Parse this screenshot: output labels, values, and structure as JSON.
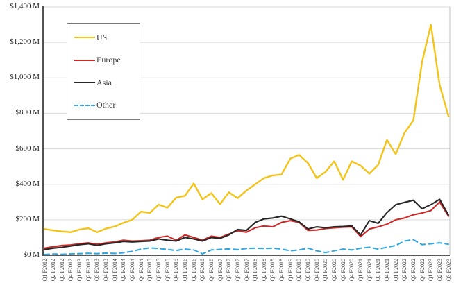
{
  "chart_data": {
    "type": "line",
    "title": "",
    "xlabel": "",
    "ylabel": "",
    "ylim": [
      0,
      1400
    ],
    "grid": true,
    "legend_position": "top-left",
    "y_ticks": [
      "$0 M",
      "$200 M",
      "$400 M",
      "$600 M",
      "$800 M",
      "$1,000 M",
      "$1,200 M",
      "$1,400 M"
    ],
    "categories": [
      "Q1 F2012",
      "Q2 F2012",
      "Q3 F2012",
      "Q4 F2012",
      "Q1 F2013",
      "Q2 F2013",
      "Q3 F2013",
      "Q4 F2013",
      "Q1 F2014",
      "Q2 F2014",
      "Q3 F2014",
      "Q4 F2014",
      "Q1 F2015",
      "Q2 F2015",
      "Q3 F2015",
      "Q4 F2015",
      "Q1 F2016",
      "Q2 F2016",
      "Q3 F2016",
      "Q4 F2016",
      "Q1 F2017",
      "Q2 F2017",
      "Q3 F2017",
      "Q4 F2017",
      "Q1 F2018",
      "Q2 F2018",
      "Q3 F2018",
      "Q4 F2018",
      "Q1 F2019",
      "Q2 F2019",
      "Q3 F2019",
      "Q4 F2019",
      "Q1 F2020",
      "Q2 F2020",
      "Q3 F2020",
      "Q4 F2020",
      "Q1 F2021",
      "Q2 F2021",
      "Q3 F2021",
      "Q4 F2021",
      "Q1 F2022",
      "Q2 F2022",
      "Q3 F2022",
      "Q4 F2022",
      "Q1 F2023",
      "Q2 F2023",
      "Q3 F2023"
    ],
    "series": [
      {
        "name": "US",
        "color": "#F2C318",
        "dash": false,
        "values": [
          148,
          140,
          134,
          130,
          145,
          152,
          130,
          150,
          162,
          183,
          200,
          246,
          238,
          285,
          268,
          325,
          335,
          405,
          315,
          350,
          288,
          355,
          322,
          365,
          400,
          435,
          450,
          455,
          545,
          565,
          520,
          435,
          470,
          530,
          425,
          530,
          505,
          460,
          510,
          650,
          570,
          690,
          760,
          1090,
          1300,
          960,
          785
        ]
      },
      {
        "name": "Europe",
        "color": "#CC2929",
        "dash": false,
        "values": [
          40,
          48,
          55,
          58,
          65,
          70,
          62,
          70,
          75,
          85,
          80,
          82,
          85,
          100,
          108,
          85,
          115,
          100,
          85,
          108,
          100,
          120,
          138,
          130,
          155,
          165,
          160,
          185,
          195,
          185,
          140,
          142,
          150,
          155,
          158,
          160,
          105,
          148,
          160,
          175,
          200,
          210,
          228,
          238,
          252,
          300,
          220
        ]
      },
      {
        "name": "Asia",
        "color": "#262626",
        "dash": false,
        "values": [
          32,
          40,
          45,
          52,
          60,
          65,
          55,
          65,
          70,
          78,
          75,
          78,
          80,
          92,
          85,
          80,
          100,
          92,
          80,
          100,
          95,
          115,
          145,
          140,
          185,
          205,
          210,
          220,
          205,
          188,
          148,
          160,
          155,
          160,
          162,
          165,
          115,
          195,
          180,
          240,
          285,
          298,
          310,
          262,
          285,
          315,
          227
        ]
      },
      {
        "name": "Other",
        "color": "#35A7DF",
        "dash": true,
        "values": [
          4,
          7,
          5,
          8,
          9,
          11,
          9,
          12,
          10,
          14,
          22,
          35,
          42,
          38,
          33,
          27,
          35,
          30,
          8,
          30,
          33,
          36,
          32,
          38,
          40,
          38,
          40,
          35,
          25,
          30,
          40,
          25,
          15,
          25,
          35,
          30,
          40,
          45,
          35,
          45,
          55,
          80,
          88,
          60,
          65,
          70,
          62
        ]
      }
    ]
  }
}
